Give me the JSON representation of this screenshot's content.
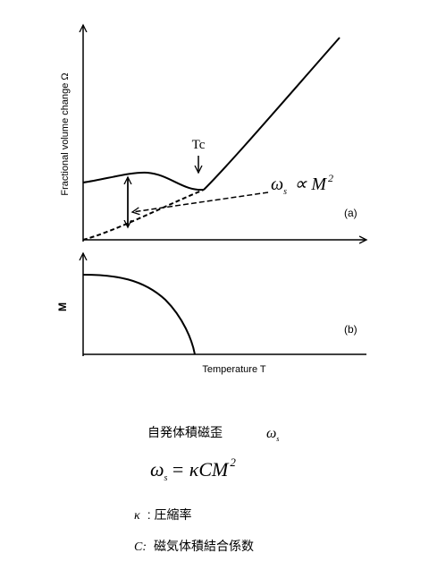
{
  "plot_a": {
    "y_label": "Fractional volume change Ω",
    "tc_label": "Tc",
    "relation": {
      "symbol": "ω",
      "sub": "s",
      "rest": "∝ M",
      "sup": "2"
    },
    "panel_label": "(a)"
  },
  "plot_b": {
    "y_label": "M",
    "panel_label": "(b)",
    "x_label": "Temperature T"
  },
  "caption": {
    "term": "自発体積磁歪",
    "term_symbol": "ω",
    "term_sub": "s",
    "equation": {
      "symbol": "ω",
      "sub": "s",
      "rest": "= κCM",
      "sup": "2"
    },
    "kappa": {
      "symbol": "κ",
      "text": ": 圧縮率"
    },
    "c": {
      "symbol": "C:",
      "text": "磁気体積結合係数"
    }
  }
}
